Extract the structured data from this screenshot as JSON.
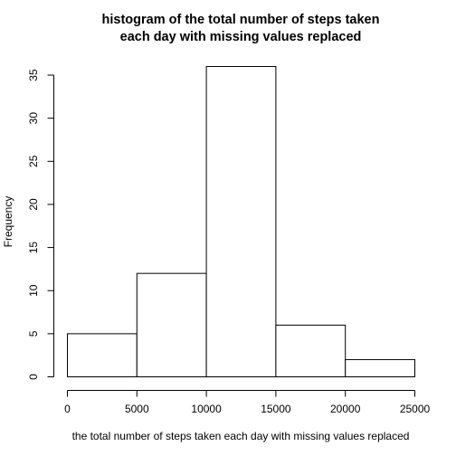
{
  "chart_data": {
    "type": "bar",
    "title_line1": "histogram of the total number of steps taken",
    "title_line2": "each day with missing values replaced",
    "xlabel": "the total number of steps taken each day with missing values replaced",
    "ylabel": "Frequency",
    "bins": [
      {
        "from": 0,
        "to": 5000,
        "value": 5
      },
      {
        "from": 5000,
        "to": 10000,
        "value": 12
      },
      {
        "from": 10000,
        "to": 15000,
        "value": 36
      },
      {
        "from": 15000,
        "to": 20000,
        "value": 6
      },
      {
        "from": 20000,
        "to": 25000,
        "value": 2
      }
    ],
    "xlim": [
      0,
      25000
    ],
    "ylim": [
      0,
      36
    ],
    "xticks": [
      0,
      5000,
      10000,
      15000,
      20000,
      25000
    ],
    "yticks": [
      0,
      5,
      10,
      15,
      20,
      25,
      30,
      35
    ],
    "grid": false,
    "colors": {
      "bar_fill": "#ffffff",
      "bar_stroke": "#000000"
    }
  }
}
